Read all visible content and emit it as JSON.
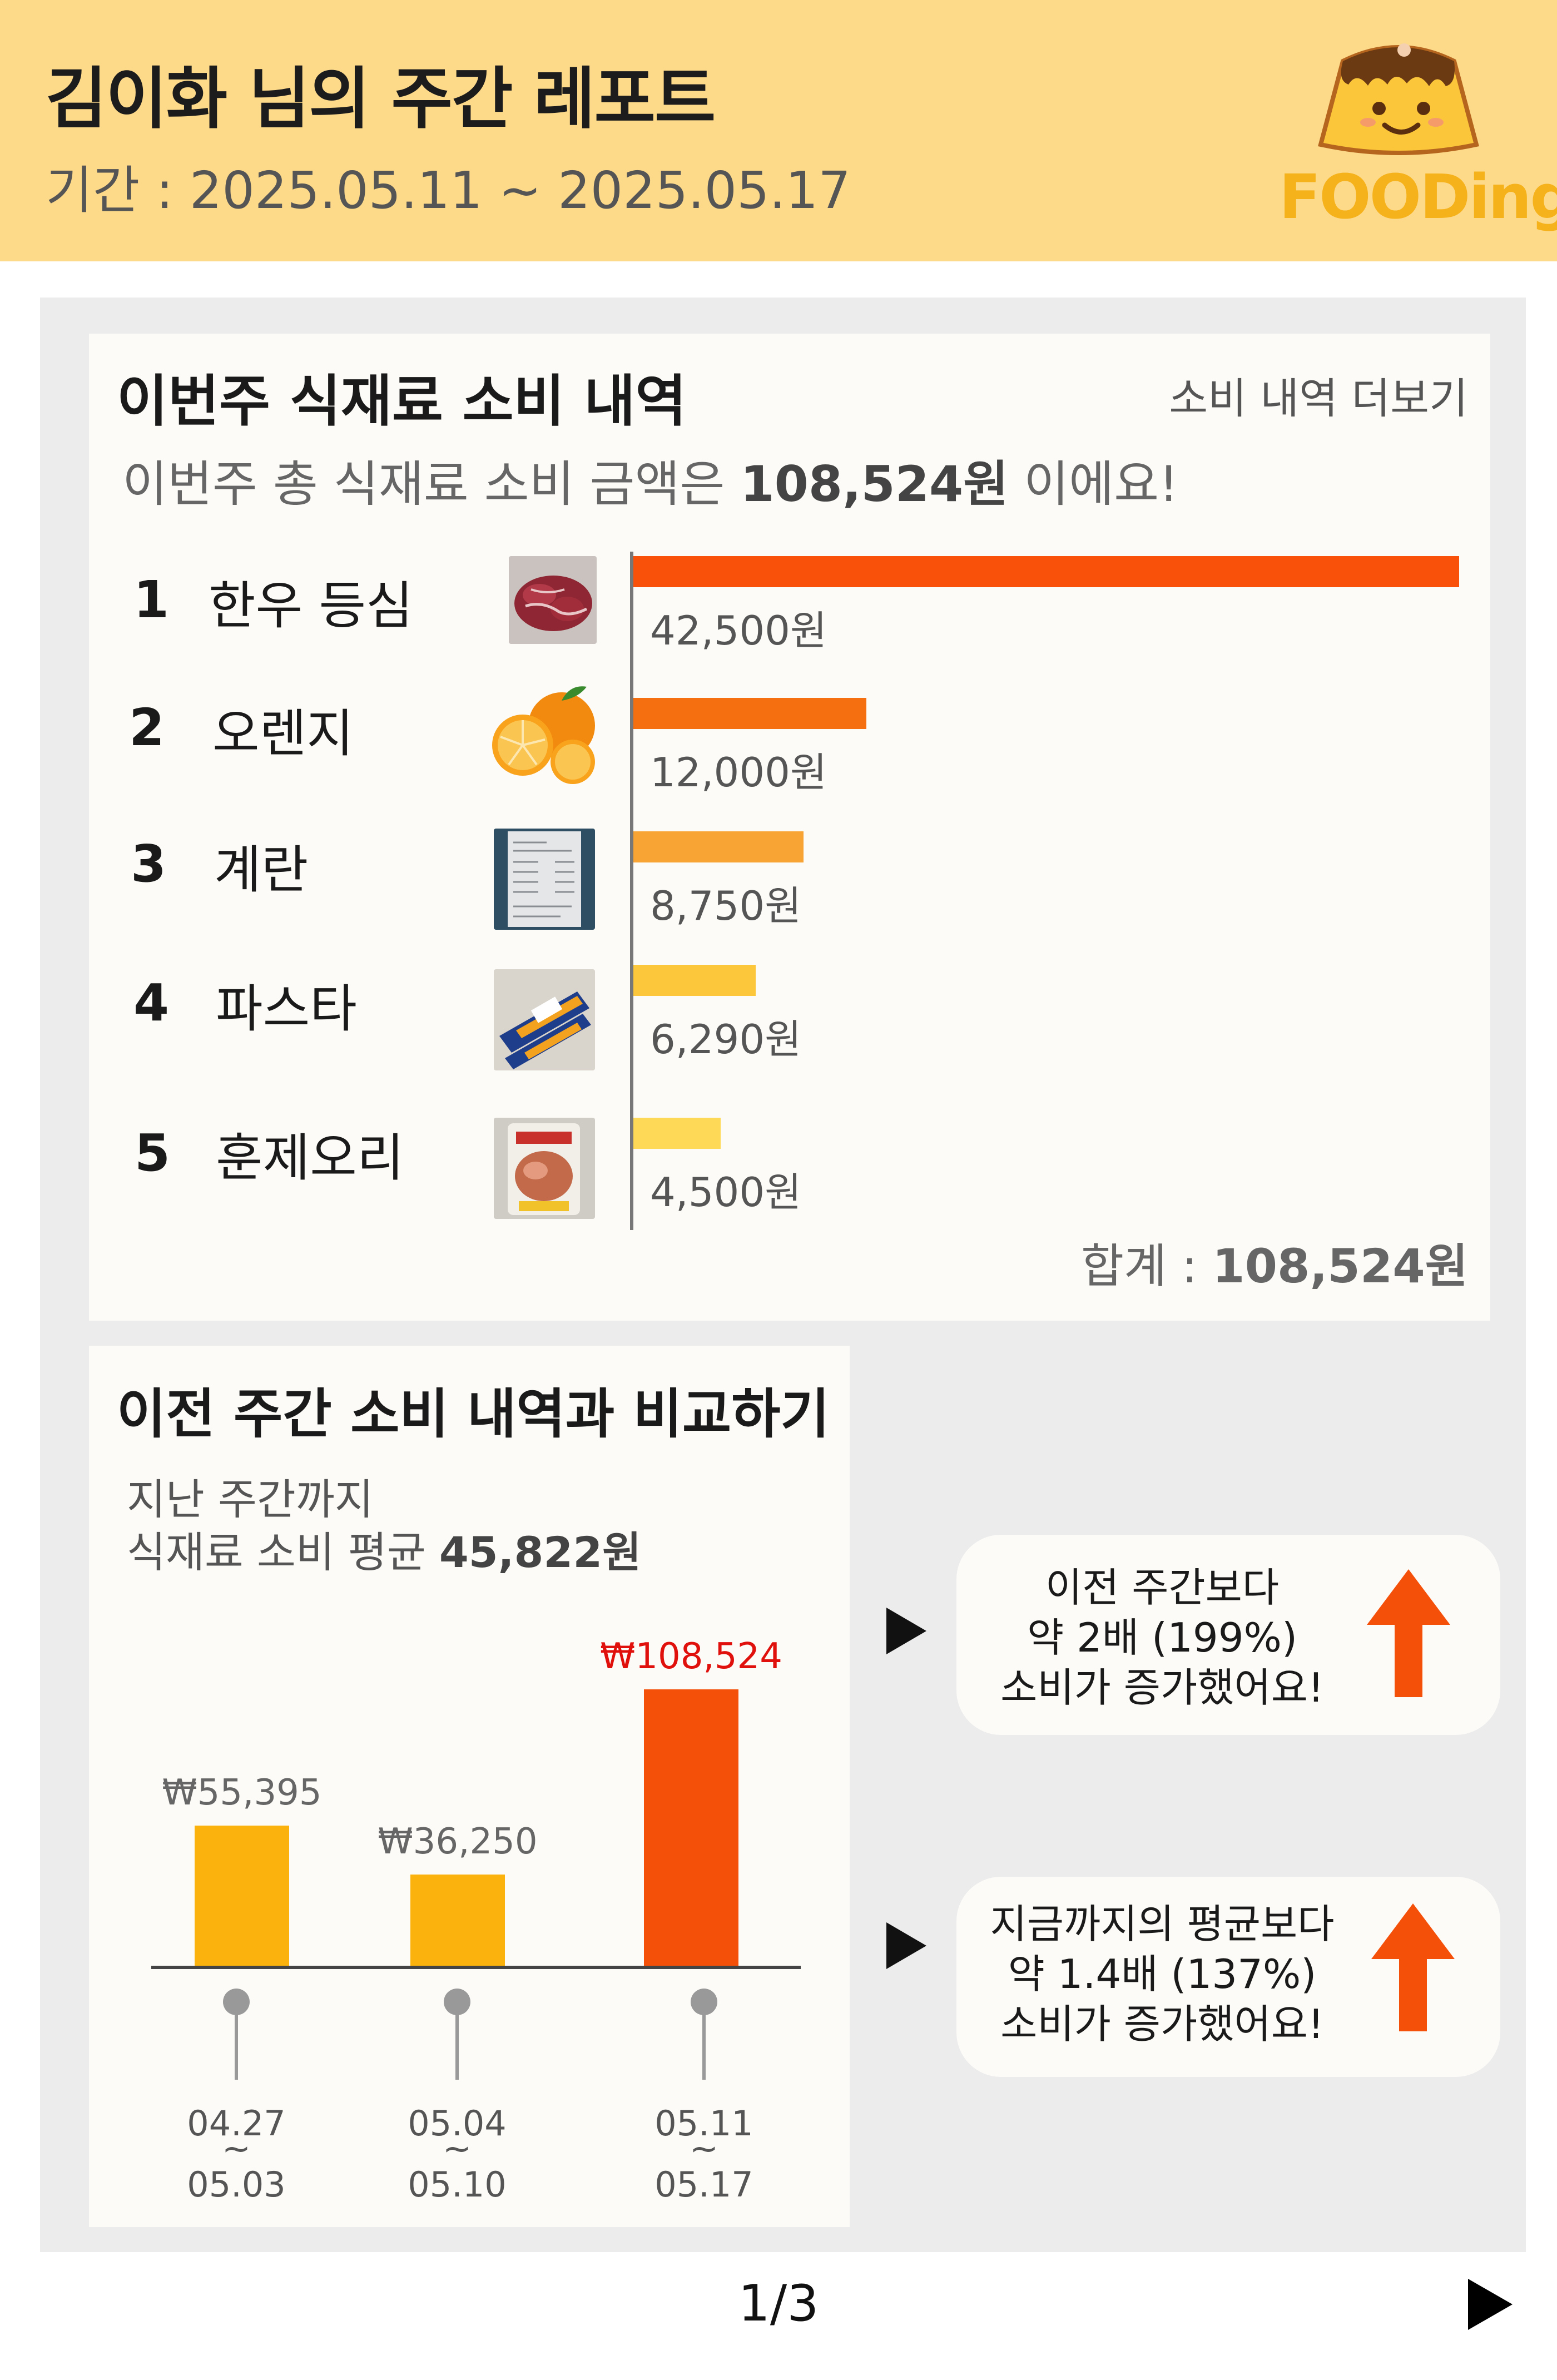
{
  "header": {
    "title": "김이화 님의 주간 레포트",
    "period": "기간 : 2025.05.11 ~ 2025.05.17",
    "logo_text": "FOODing"
  },
  "weekly": {
    "title": "이번주 식재료 소비 내역",
    "more_link": "소비 내역 더보기",
    "total_prefix": "이번주 총 식재료 소비 금액은 ",
    "total_amount": "108,524원",
    "total_suffix": " 이에요!",
    "items": [
      {
        "rank": "1",
        "name": "한우 등심",
        "amount_label": "42,500원",
        "amount": 42500,
        "color": "#F9500A",
        "thumb": "beef-sirloin-photo"
      },
      {
        "rank": "2",
        "name": "오렌지",
        "amount_label": "12,000원",
        "amount": 12000,
        "color": "#F56E0F",
        "thumb": "orange-photo"
      },
      {
        "rank": "3",
        "name": "계란",
        "amount_label": "8,750원",
        "amount": 8750,
        "color": "#F8A435",
        "thumb": "receipt-photo"
      },
      {
        "rank": "4",
        "name": "파스타",
        "amount_label": "6,290원",
        "amount": 6290,
        "color": "#FCC73B",
        "thumb": "pasta-package-photo"
      },
      {
        "rank": "5",
        "name": "훈제오리",
        "amount_label": "4,500원",
        "amount": 4500,
        "color": "#FDD957",
        "thumb": "smoked-duck-photo"
      }
    ],
    "sum_prefix": "합계 : ",
    "sum_amount": "108,524원"
  },
  "compare": {
    "title": "이전 주간 소비 내역과 비교하기",
    "avg_line1": "지난 주간까지",
    "avg_prefix": "식재료 소비 평균 ",
    "avg_amount": "45,822원",
    "bubbles": [
      {
        "line1": "이전 주간보다",
        "line2": "약 2배 (199%)",
        "line3": "소비가 증가했어요!"
      },
      {
        "line1": "지금까지의 평균보다",
        "line2": "약 1.4배 (137%)",
        "line3": "소비가 증가했어요!"
      }
    ]
  },
  "chart_data": {
    "type": "bar",
    "categories": [
      "04.27 ~ 05.03",
      "05.04 ~ 05.10",
      "05.11 ~ 05.17"
    ],
    "category_lines": [
      [
        "04.27",
        "~",
        "05.03"
      ],
      [
        "05.04",
        "~",
        "05.10"
      ],
      [
        "05.11",
        "~",
        "05.17"
      ]
    ],
    "values": [
      55395,
      36250,
      108524
    ],
    "value_labels": [
      "₩55,395",
      "₩36,250",
      "₩108,524"
    ],
    "colors": [
      "#FBB20C",
      "#FBB20C",
      "#F5500A"
    ],
    "label_colors": [
      "#666666",
      "#666666",
      "#E0100C"
    ],
    "ylim": [
      0,
      108524
    ],
    "title": "",
    "xlabel": "",
    "ylabel": ""
  },
  "footer": {
    "page": "1/3"
  }
}
